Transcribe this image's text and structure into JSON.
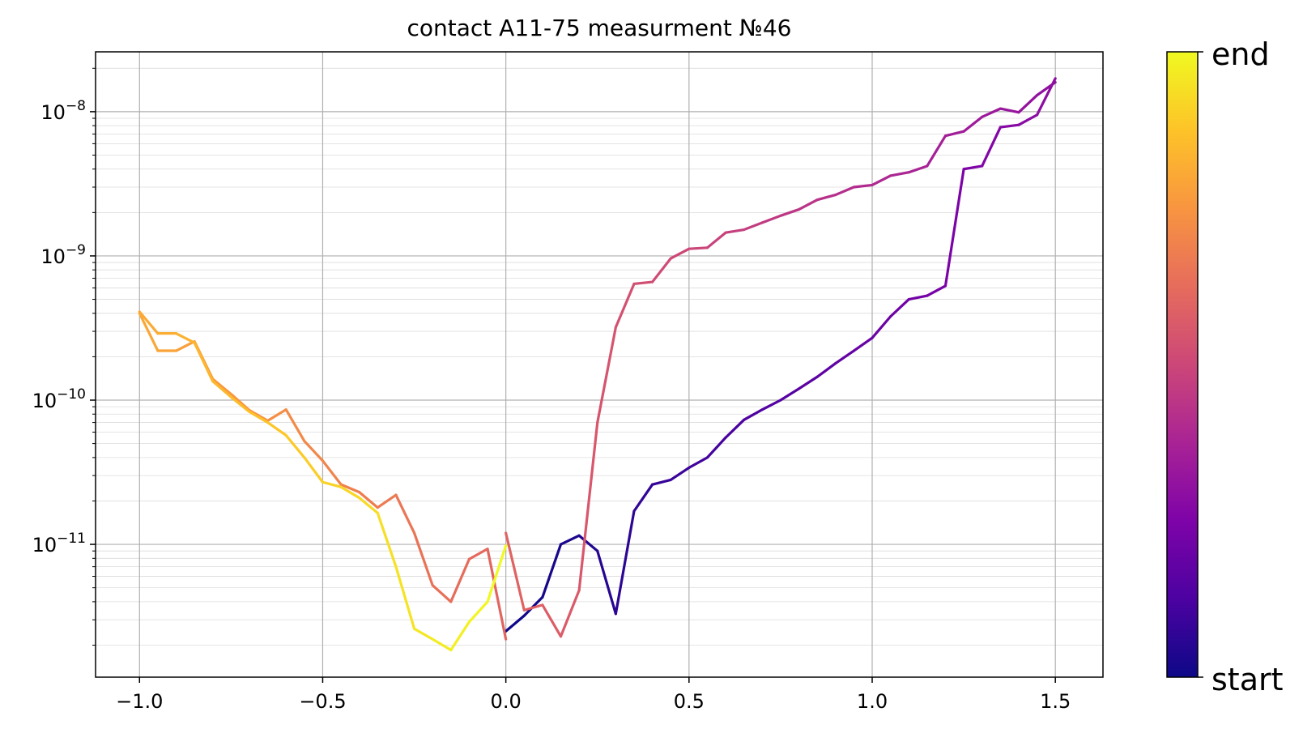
{
  "chart_data": {
    "type": "line",
    "title": "contact A11-75 measurment №46",
    "xlabel": "",
    "ylabel": "",
    "xlim": [
      -1.12,
      1.63
    ],
    "ylim": [
      1.2e-12,
      2.6e-08
    ],
    "yscale": "log",
    "grid": "major and minor on y, major on x",
    "x_ticks": [
      "−1.0",
      "−0.5",
      "0.0",
      "0.5",
      "1.0",
      "1.5"
    ],
    "x_tick_values": [
      -1.0,
      -0.5,
      0.0,
      0.5,
      1.0,
      1.5
    ],
    "y_ticks": [
      {
        "value": 1e-11,
        "base": "10",
        "exp": "−11"
      },
      {
        "value": 1e-10,
        "base": "10",
        "exp": "−10"
      },
      {
        "value": 1e-09,
        "base": "10",
        "exp": "−9"
      },
      {
        "value": 1e-08,
        "base": "10",
        "exp": "−8"
      }
    ],
    "colormap": "plasma",
    "colorbar": {
      "top_label": "end",
      "bottom_label": "start"
    },
    "series": [
      {
        "x": [
          0.0,
          0.05,
          0.1,
          0.15,
          0.2,
          0.25,
          0.3,
          0.35,
          0.4,
          0.45,
          0.5,
          0.55,
          0.6,
          0.65,
          0.7,
          0.75,
          0.8,
          0.85,
          0.9,
          0.95,
          1.0,
          1.05,
          1.1,
          1.15,
          1.2,
          1.25,
          1.3,
          1.35,
          1.4,
          1.45,
          1.5
        ],
        "y": [
          2.5e-12,
          3.2e-12,
          4.3e-12,
          1e-11,
          1.15e-11,
          9e-12,
          3.3e-12,
          1.7e-11,
          2.6e-11,
          2.8e-11,
          3.4e-11,
          4e-11,
          5.5e-11,
          7.3e-11,
          8.6e-11,
          1e-10,
          1.2e-10,
          1.45e-10,
          1.8e-10,
          2.2e-10,
          2.7e-10,
          3.8e-10,
          5e-10,
          5.3e-10,
          6.2e-10,
          4e-09,
          4.2e-09,
          7.8e-09,
          8.1e-09,
          9.5e-09,
          1.7e-08
        ]
      },
      {
        "x": [
          1.5,
          1.45,
          1.4,
          1.35,
          1.3,
          1.25,
          1.2,
          1.15,
          1.1,
          1.05,
          1.0,
          0.95,
          0.9,
          0.85,
          0.8,
          0.75,
          0.7,
          0.65,
          0.6,
          0.55,
          0.5,
          0.45,
          0.4,
          0.35,
          0.3,
          0.25,
          0.2,
          0.15,
          0.1,
          0.05,
          0.0
        ],
        "y": [
          1.6e-08,
          1.3e-08,
          9.9e-09,
          1.05e-08,
          9.2e-09,
          7.3e-09,
          6.8e-09,
          4.2e-09,
          3.8e-09,
          3.6e-09,
          3.1e-09,
          3e-09,
          2.65e-09,
          2.45e-09,
          2.1e-09,
          1.9e-09,
          1.7e-09,
          1.52e-09,
          1.45e-09,
          1.14e-09,
          1.12e-09,
          9.6e-10,
          6.6e-10,
          6.4e-10,
          3.2e-10,
          7e-11,
          4.8e-12,
          2.3e-12,
          3.8e-12,
          3.5e-12,
          1.2e-11
        ]
      },
      {
        "x": [
          0.0,
          -0.05,
          -0.1,
          -0.15,
          -0.2,
          -0.25,
          -0.3,
          -0.35,
          -0.4,
          -0.45,
          -0.5,
          -0.55,
          -0.6,
          -0.65,
          -0.7,
          -0.75,
          -0.8,
          -0.85,
          -0.9,
          -0.95,
          -1.0
        ],
        "y": [
          2.2e-12,
          9.3e-12,
          7.9e-12,
          4e-12,
          5.2e-12,
          1.2e-11,
          2.2e-11,
          1.8e-11,
          2.3e-11,
          2.6e-11,
          3.8e-11,
          5.2e-11,
          8.6e-11,
          7.2e-11,
          8.5e-11,
          1.1e-10,
          1.4e-10,
          2.55e-10,
          2.2e-10,
          2.2e-10,
          4e-10
        ]
      },
      {
        "x": [
          -1.0,
          -0.95,
          -0.9,
          -0.85,
          -0.8,
          -0.75,
          -0.7,
          -0.65,
          -0.6,
          -0.55,
          -0.5,
          -0.45,
          -0.4,
          -0.35,
          -0.3,
          -0.25,
          -0.2,
          -0.15,
          -0.1,
          -0.05,
          0.0
        ],
        "y": [
          4.1e-10,
          2.9e-10,
          2.9e-10,
          2.5e-10,
          1.35e-10,
          1.05e-10,
          8.3e-11,
          7e-11,
          5.7e-11,
          4e-11,
          2.7e-11,
          2.5e-11,
          2.1e-11,
          1.65e-11,
          7e-12,
          2.6e-12,
          2.2e-12,
          1.85e-12,
          2.9e-12,
          4e-12,
          9.8e-12
        ]
      }
    ]
  }
}
